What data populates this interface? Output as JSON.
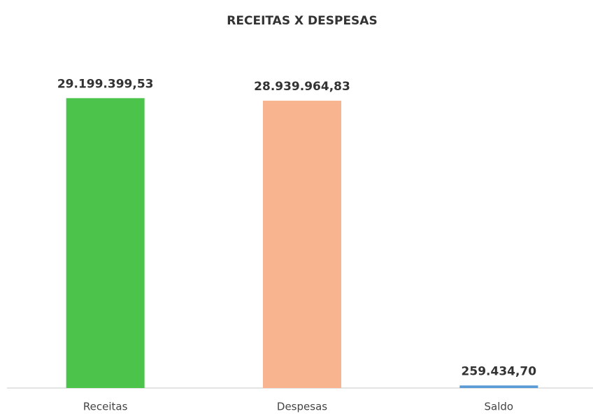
{
  "chart_data": {
    "type": "bar",
    "title": "RECEITAS X DESPESAS",
    "categories": [
      "Receitas",
      "Despesas",
      "Saldo"
    ],
    "values": [
      29199399.53,
      28939964.83,
      259434.7
    ],
    "value_labels": [
      "29.199.399,53",
      "28.939.964,83",
      "259.434,70"
    ],
    "colors": [
      "#4cc44c",
      "#f8b48e",
      "#5b9bd5"
    ],
    "ylim": [
      0,
      30000000
    ]
  }
}
